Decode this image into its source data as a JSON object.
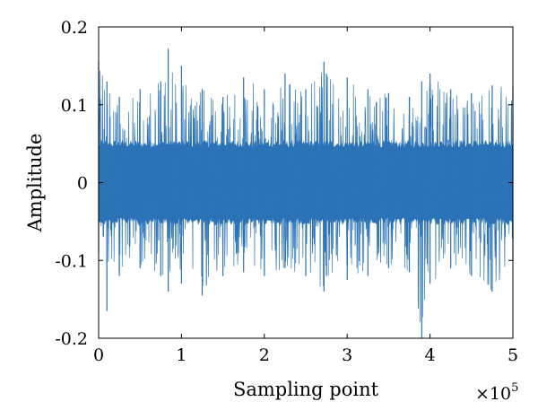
{
  "chart_data": {
    "type": "line",
    "title": "",
    "xlabel": "Sampling point",
    "ylabel": "Amplitude",
    "x_multiplier": "×10^5",
    "x_multiplier_base": "×10",
    "x_multiplier_exp": "5",
    "xlim": [
      0,
      5
    ],
    "ylim": [
      -0.2,
      0.2
    ],
    "x_ticks": [
      0,
      1,
      2,
      3,
      4,
      5
    ],
    "x_tick_labels": [
      "0",
      "1",
      "2",
      "3",
      "4",
      "5"
    ],
    "y_ticks": [
      -0.2,
      -0.1,
      0,
      0.1,
      0.2
    ],
    "y_tick_labels": [
      "-0.2",
      "-0.1",
      "0",
      "0.1",
      "0.2"
    ],
    "grid": false,
    "series": [
      {
        "color": "#2B73B6",
        "envelope": {
          "x": [
            0,
            0.1,
            0.25,
            0.5,
            0.75,
            0.84,
            1.0,
            1.25,
            1.5,
            1.75,
            2.0,
            2.25,
            2.5,
            2.72,
            2.75,
            3.0,
            3.25,
            3.5,
            3.75,
            3.9,
            4.0,
            4.25,
            4.5,
            4.75,
            5.0
          ],
          "max": [
            0.155,
            0.13,
            0.11,
            0.12,
            0.13,
            0.172,
            0.15,
            0.12,
            0.11,
            0.135,
            0.12,
            0.14,
            0.12,
            0.155,
            0.14,
            0.135,
            0.12,
            0.115,
            0.11,
            0.13,
            0.14,
            0.12,
            0.115,
            0.125,
            0.125
          ],
          "min": [
            -0.09,
            -0.165,
            -0.12,
            -0.11,
            -0.12,
            -0.14,
            -0.13,
            -0.145,
            -0.12,
            -0.115,
            -0.12,
            -0.11,
            -0.12,
            -0.14,
            -0.12,
            -0.125,
            -0.12,
            -0.11,
            -0.115,
            -0.2,
            -0.13,
            -0.11,
            -0.12,
            -0.14,
            -0.1
          ]
        }
      }
    ]
  }
}
